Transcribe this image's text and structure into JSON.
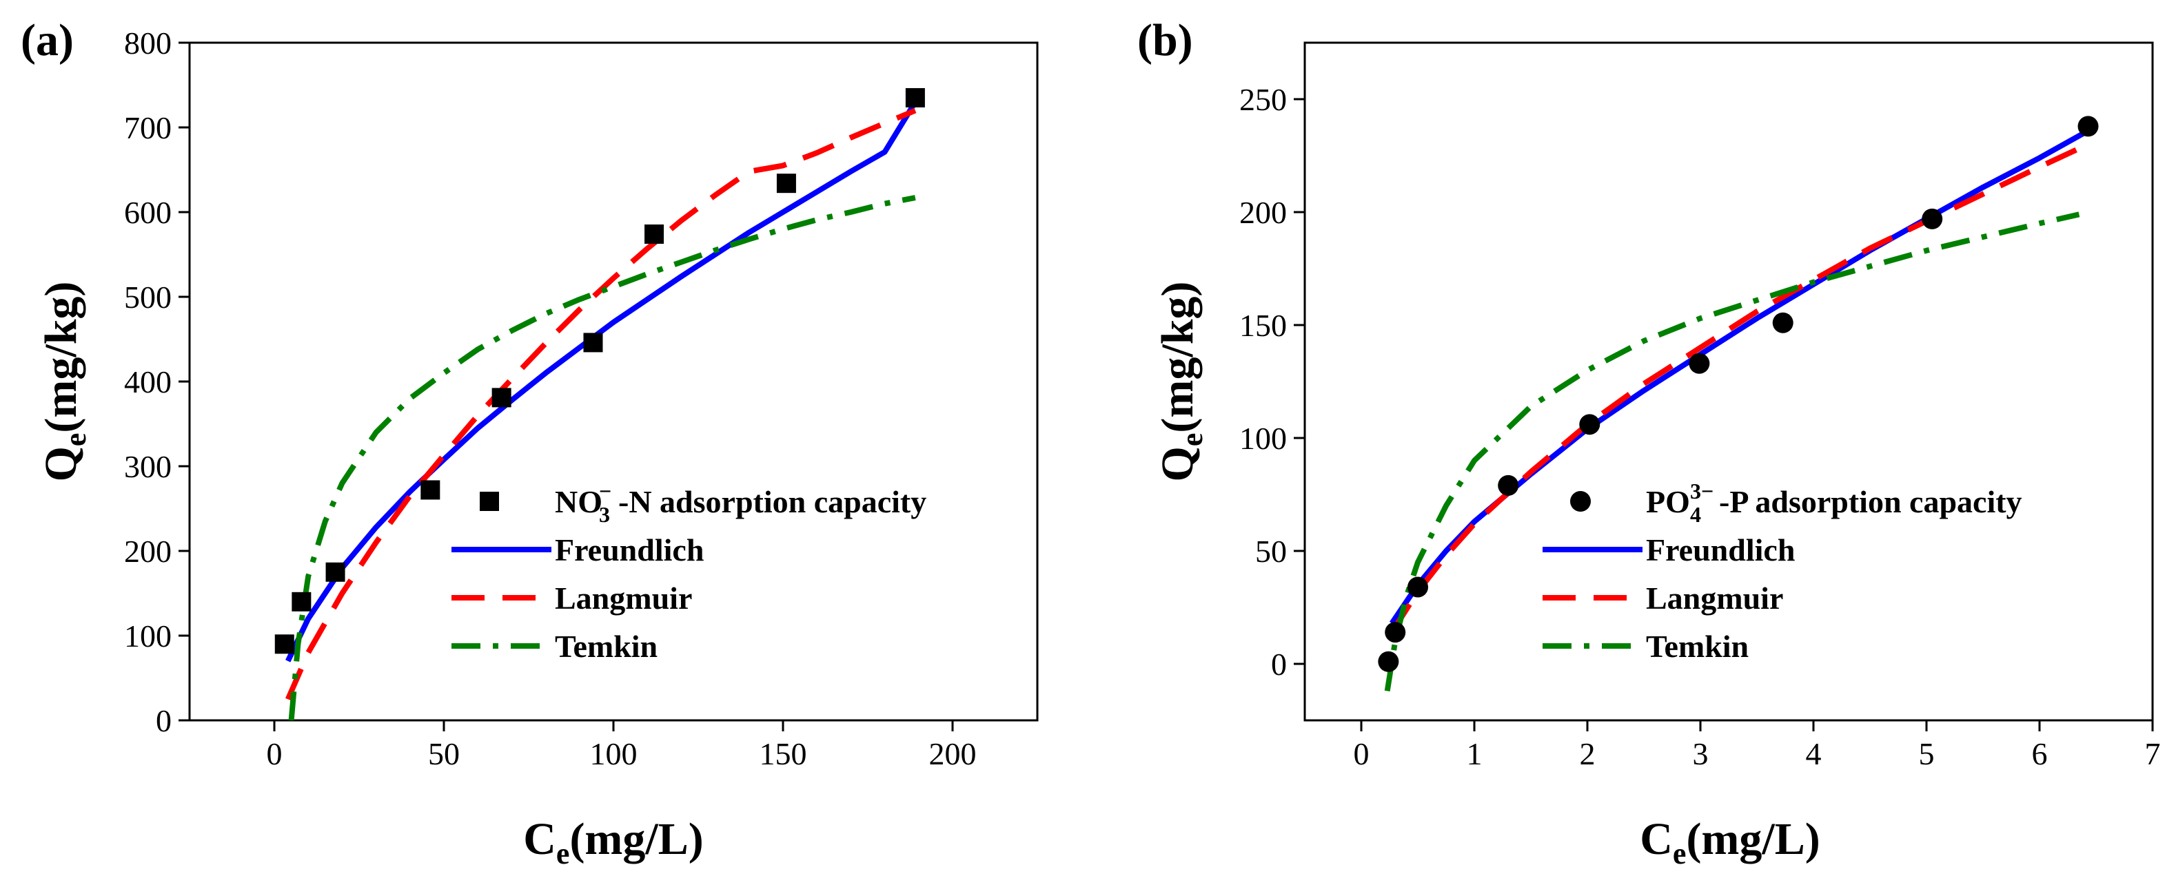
{
  "chart_data": [
    {
      "type": "scatter",
      "panel_label": "(a)",
      "xlabel": "C",
      "xlabel_sub": "e",
      "xlabel_unit": "(mg/L)",
      "ylabel": "Q",
      "ylabel_sub": "e",
      "ylabel_unit": "(mg/kg)",
      "xlim": [
        -25,
        225
      ],
      "ylim": [
        0,
        800
      ],
      "xticks": [
        0,
        50,
        100,
        150,
        200
      ],
      "yticks": [
        0,
        100,
        200,
        300,
        400,
        500,
        600,
        700,
        800
      ],
      "marker": "square",
      "legend_position": "lower-right",
      "scatter": {
        "name": "NO3−-N adsorption capacity",
        "name_main": "NO",
        "name_sub": "3",
        "name_sup": "−",
        "name_rest": "-N adsorption capacity",
        "x": [
          3,
          8,
          18,
          46,
          67,
          94,
          112,
          151,
          189
        ],
        "y": [
          90,
          140,
          175,
          272,
          381,
          446,
          574,
          634,
          735
        ]
      },
      "series": [
        {
          "name": "Freundlich",
          "color": "#0000FF",
          "dash": "solid",
          "x": [
            4,
            10,
            20,
            30,
            40,
            50,
            60,
            70,
            80,
            90,
            100,
            110,
            120,
            130,
            140,
            150,
            160,
            170,
            180,
            189
          ],
          "y": [
            70,
            120,
            180,
            228,
            270,
            308,
            345,
            378,
            410,
            440,
            470,
            497,
            524,
            550,
            576,
            600,
            624,
            648,
            671,
            730
          ]
        },
        {
          "name": "Langmuir",
          "color": "#FF0000",
          "dash": "dashed",
          "x": [
            4,
            10,
            20,
            30,
            40,
            50,
            60,
            70,
            80,
            90,
            100,
            110,
            120,
            130,
            140,
            150,
            160,
            170,
            180,
            189
          ],
          "y": [
            25,
            80,
            150,
            210,
            265,
            313,
            360,
            403,
            445,
            485,
            522,
            557,
            590,
            620,
            648,
            655,
            670,
            688,
            705,
            720
          ]
        },
        {
          "name": "Temkin",
          "color": "#008000",
          "dash": "dashdot",
          "x": [
            5,
            7,
            10,
            15,
            20,
            30,
            40,
            50,
            60,
            70,
            80,
            90,
            100,
            110,
            120,
            130,
            140,
            150,
            160,
            170,
            180,
            189
          ],
          "y": [
            0,
            90,
            170,
            235,
            280,
            340,
            380,
            410,
            438,
            460,
            480,
            497,
            512,
            527,
            541,
            555,
            568,
            580,
            591,
            600,
            610,
            617
          ]
        }
      ]
    },
    {
      "type": "scatter",
      "panel_label": "(b)",
      "xlabel": "C",
      "xlabel_sub": "e",
      "xlabel_unit": "(mg/L)",
      "ylabel": "Q",
      "ylabel_sub": "e",
      "ylabel_unit": "(mg/kg)",
      "xlim": [
        -0.5,
        7
      ],
      "ylim": [
        -25,
        275
      ],
      "xticks": [
        0,
        1,
        2,
        3,
        4,
        5,
        6,
        7
      ],
      "yticks": [
        0,
        50,
        100,
        150,
        200,
        250
      ],
      "marker": "circle",
      "legend_position": "lower-right",
      "scatter": {
        "name": "PO43−-P adsorption capacity",
        "name_main": "PO",
        "name_sub": "4",
        "name_sup": "3−",
        "name_rest": "-P adsorption capacity",
        "x": [
          0.24,
          0.3,
          0.5,
          1.3,
          2.02,
          2.99,
          3.73,
          5.05,
          6.43
        ],
        "y": [
          1,
          14,
          34,
          79,
          106,
          133,
          151,
          197,
          238
        ]
      },
      "series": [
        {
          "name": "Freundlich",
          "color": "#0000FF",
          "dash": "solid",
          "x": [
            0.27,
            0.5,
            0.75,
            1.0,
            1.5,
            2.0,
            2.5,
            3.0,
            3.5,
            4.0,
            4.5,
            5.0,
            5.5,
            6.0,
            6.43
          ],
          "y": [
            18,
            35,
            50,
            63,
            84,
            104,
            121,
            137,
            153,
            168,
            183,
            197,
            211,
            224,
            236
          ]
        },
        {
          "name": "Langmuir",
          "color": "#FF0000",
          "dash": "dashed",
          "x": [
            0.27,
            0.5,
            0.75,
            1.0,
            1.5,
            2.0,
            2.5,
            3.0,
            3.5,
            4.0,
            4.5,
            5.0,
            5.5,
            6.0,
            6.43
          ],
          "y": [
            14,
            32,
            48,
            62,
            85,
            106,
            124,
            140,
            156,
            170,
            184,
            196,
            208,
            220,
            230
          ]
        },
        {
          "name": "Temkin",
          "color": "#008000",
          "dash": "dashdot",
          "x": [
            0.23,
            0.3,
            0.4,
            0.5,
            0.75,
            1.0,
            1.5,
            2.0,
            2.5,
            3.0,
            3.5,
            4.0,
            4.5,
            5.0,
            5.5,
            6.0,
            6.35
          ],
          "y": [
            -12,
            10,
            30,
            45,
            70,
            90,
            114,
            130,
            143,
            153,
            161,
            169,
            176,
            183,
            189,
            195,
            199
          ]
        }
      ]
    }
  ]
}
